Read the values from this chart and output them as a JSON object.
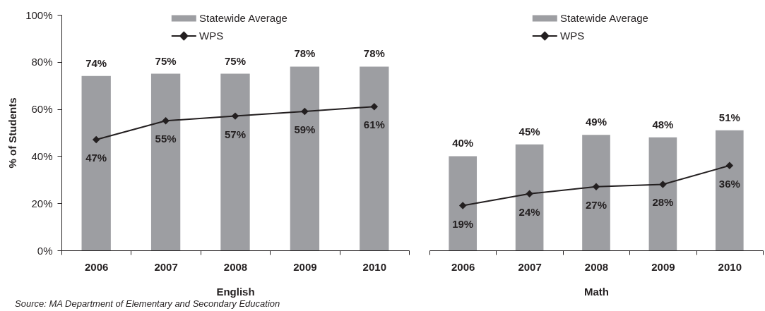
{
  "chart_data": [
    {
      "type": "bar",
      "xlabel": "English",
      "ylabel": "% of Students",
      "categories": [
        "2006",
        "2007",
        "2008",
        "2009",
        "2010"
      ],
      "series": [
        {
          "name": "Statewide Average",
          "color": "#9d9ea2",
          "values": [
            74,
            75,
            75,
            78,
            78
          ],
          "value_labels": [
            "74%",
            "75%",
            "75%",
            "78%",
            "78%"
          ]
        },
        {
          "name": "WPS",
          "type": "line",
          "color": "#231f20",
          "marker": "diamond",
          "values": [
            47,
            55,
            57,
            59,
            61
          ],
          "value_labels": [
            "47%",
            "55%",
            "57%",
            "59%",
            "61%"
          ]
        }
      ],
      "ylim": [
        0,
        100
      ],
      "yticks": [
        {
          "value": 0,
          "label": "0%"
        },
        {
          "value": 20,
          "label": "20%"
        },
        {
          "value": 40,
          "label": "40%"
        },
        {
          "value": 60,
          "label": "60%"
        },
        {
          "value": 80,
          "label": "80%"
        },
        {
          "value": 100,
          "label": "100%"
        }
      ],
      "legend": "top",
      "annotations": [
        "Source: MA Department of Elementary and Secondary Education"
      ]
    },
    {
      "type": "bar",
      "xlabel": "Math",
      "categories": [
        "2006",
        "2007",
        "2008",
        "2009",
        "2010"
      ],
      "series": [
        {
          "name": "Statewide Average",
          "color": "#9d9ea2",
          "values": [
            40,
            45,
            49,
            48,
            51
          ],
          "value_labels": [
            "40%",
            "45%",
            "49%",
            "48%",
            "51%"
          ]
        },
        {
          "name": "WPS",
          "type": "line",
          "color": "#231f20",
          "marker": "diamond",
          "values": [
            19,
            24,
            27,
            28,
            36
          ],
          "value_labels": [
            "19%",
            "24%",
            "27%",
            "28%",
            "36%"
          ]
        }
      ],
      "ylim": [
        0,
        100
      ],
      "tick_labels": "x",
      "legend": "top"
    }
  ]
}
